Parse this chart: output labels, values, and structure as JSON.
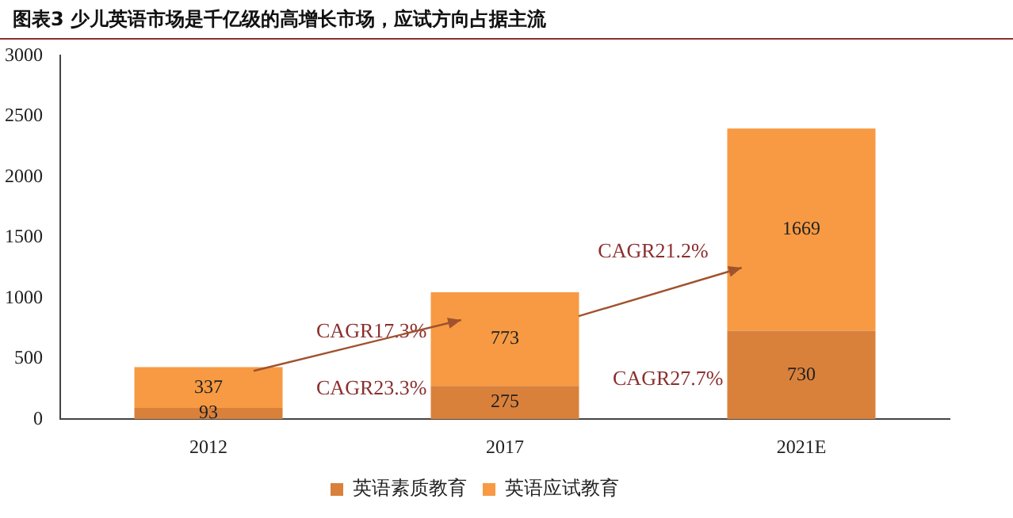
{
  "chart_data": {
    "type": "bar",
    "title": "图表3 少儿英语市场是千亿级的高增长市场，应试方向占据主流",
    "categories": [
      "2012",
      "2017",
      "2021E"
    ],
    "stacked": true,
    "data_labels": true,
    "legend": "bottom",
    "grid": false,
    "ylim": [
      0,
      3000
    ],
    "yticks": [
      0,
      500,
      1000,
      1500,
      2000,
      2500,
      3000
    ],
    "series": [
      {
        "name": "英语素质教育",
        "color": "#d9813b",
        "values": [
          93,
          275,
          730
        ]
      },
      {
        "name": "英语应试教育",
        "color": "#f79a43",
        "values": [
          337,
          773,
          1669
        ]
      }
    ],
    "annotations": [
      "CAGR17.3%",
      "CAGR23.3%",
      "CAGR21.2%",
      "CAGR27.7%"
    ]
  }
}
